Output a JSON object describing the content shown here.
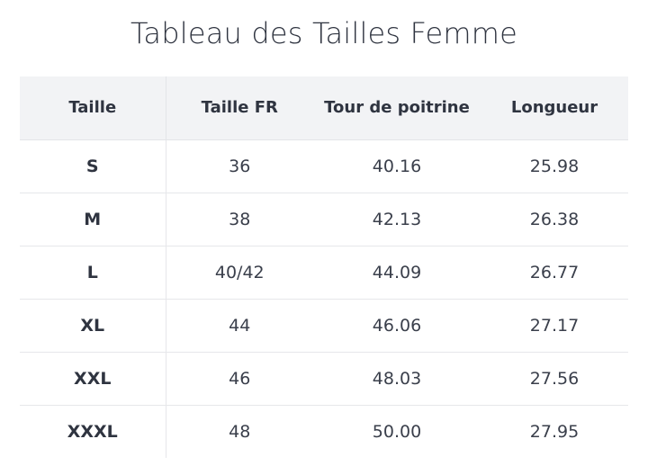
{
  "title": "Tableau des Tailles Femme",
  "table": {
    "headers": [
      "Taille",
      "Taille FR",
      "Tour de poitrine",
      "Longueur"
    ],
    "rows": [
      [
        "S",
        "36",
        "40.16",
        "25.98"
      ],
      [
        "M",
        "38",
        "42.13",
        "26.38"
      ],
      [
        "L",
        "40/42",
        "44.09",
        "26.77"
      ],
      [
        "XL",
        "44",
        "46.06",
        "27.17"
      ],
      [
        "XXL",
        "46",
        "48.03",
        "27.56"
      ],
      [
        "XXXL",
        "48",
        "50.00",
        "27.95"
      ]
    ]
  }
}
